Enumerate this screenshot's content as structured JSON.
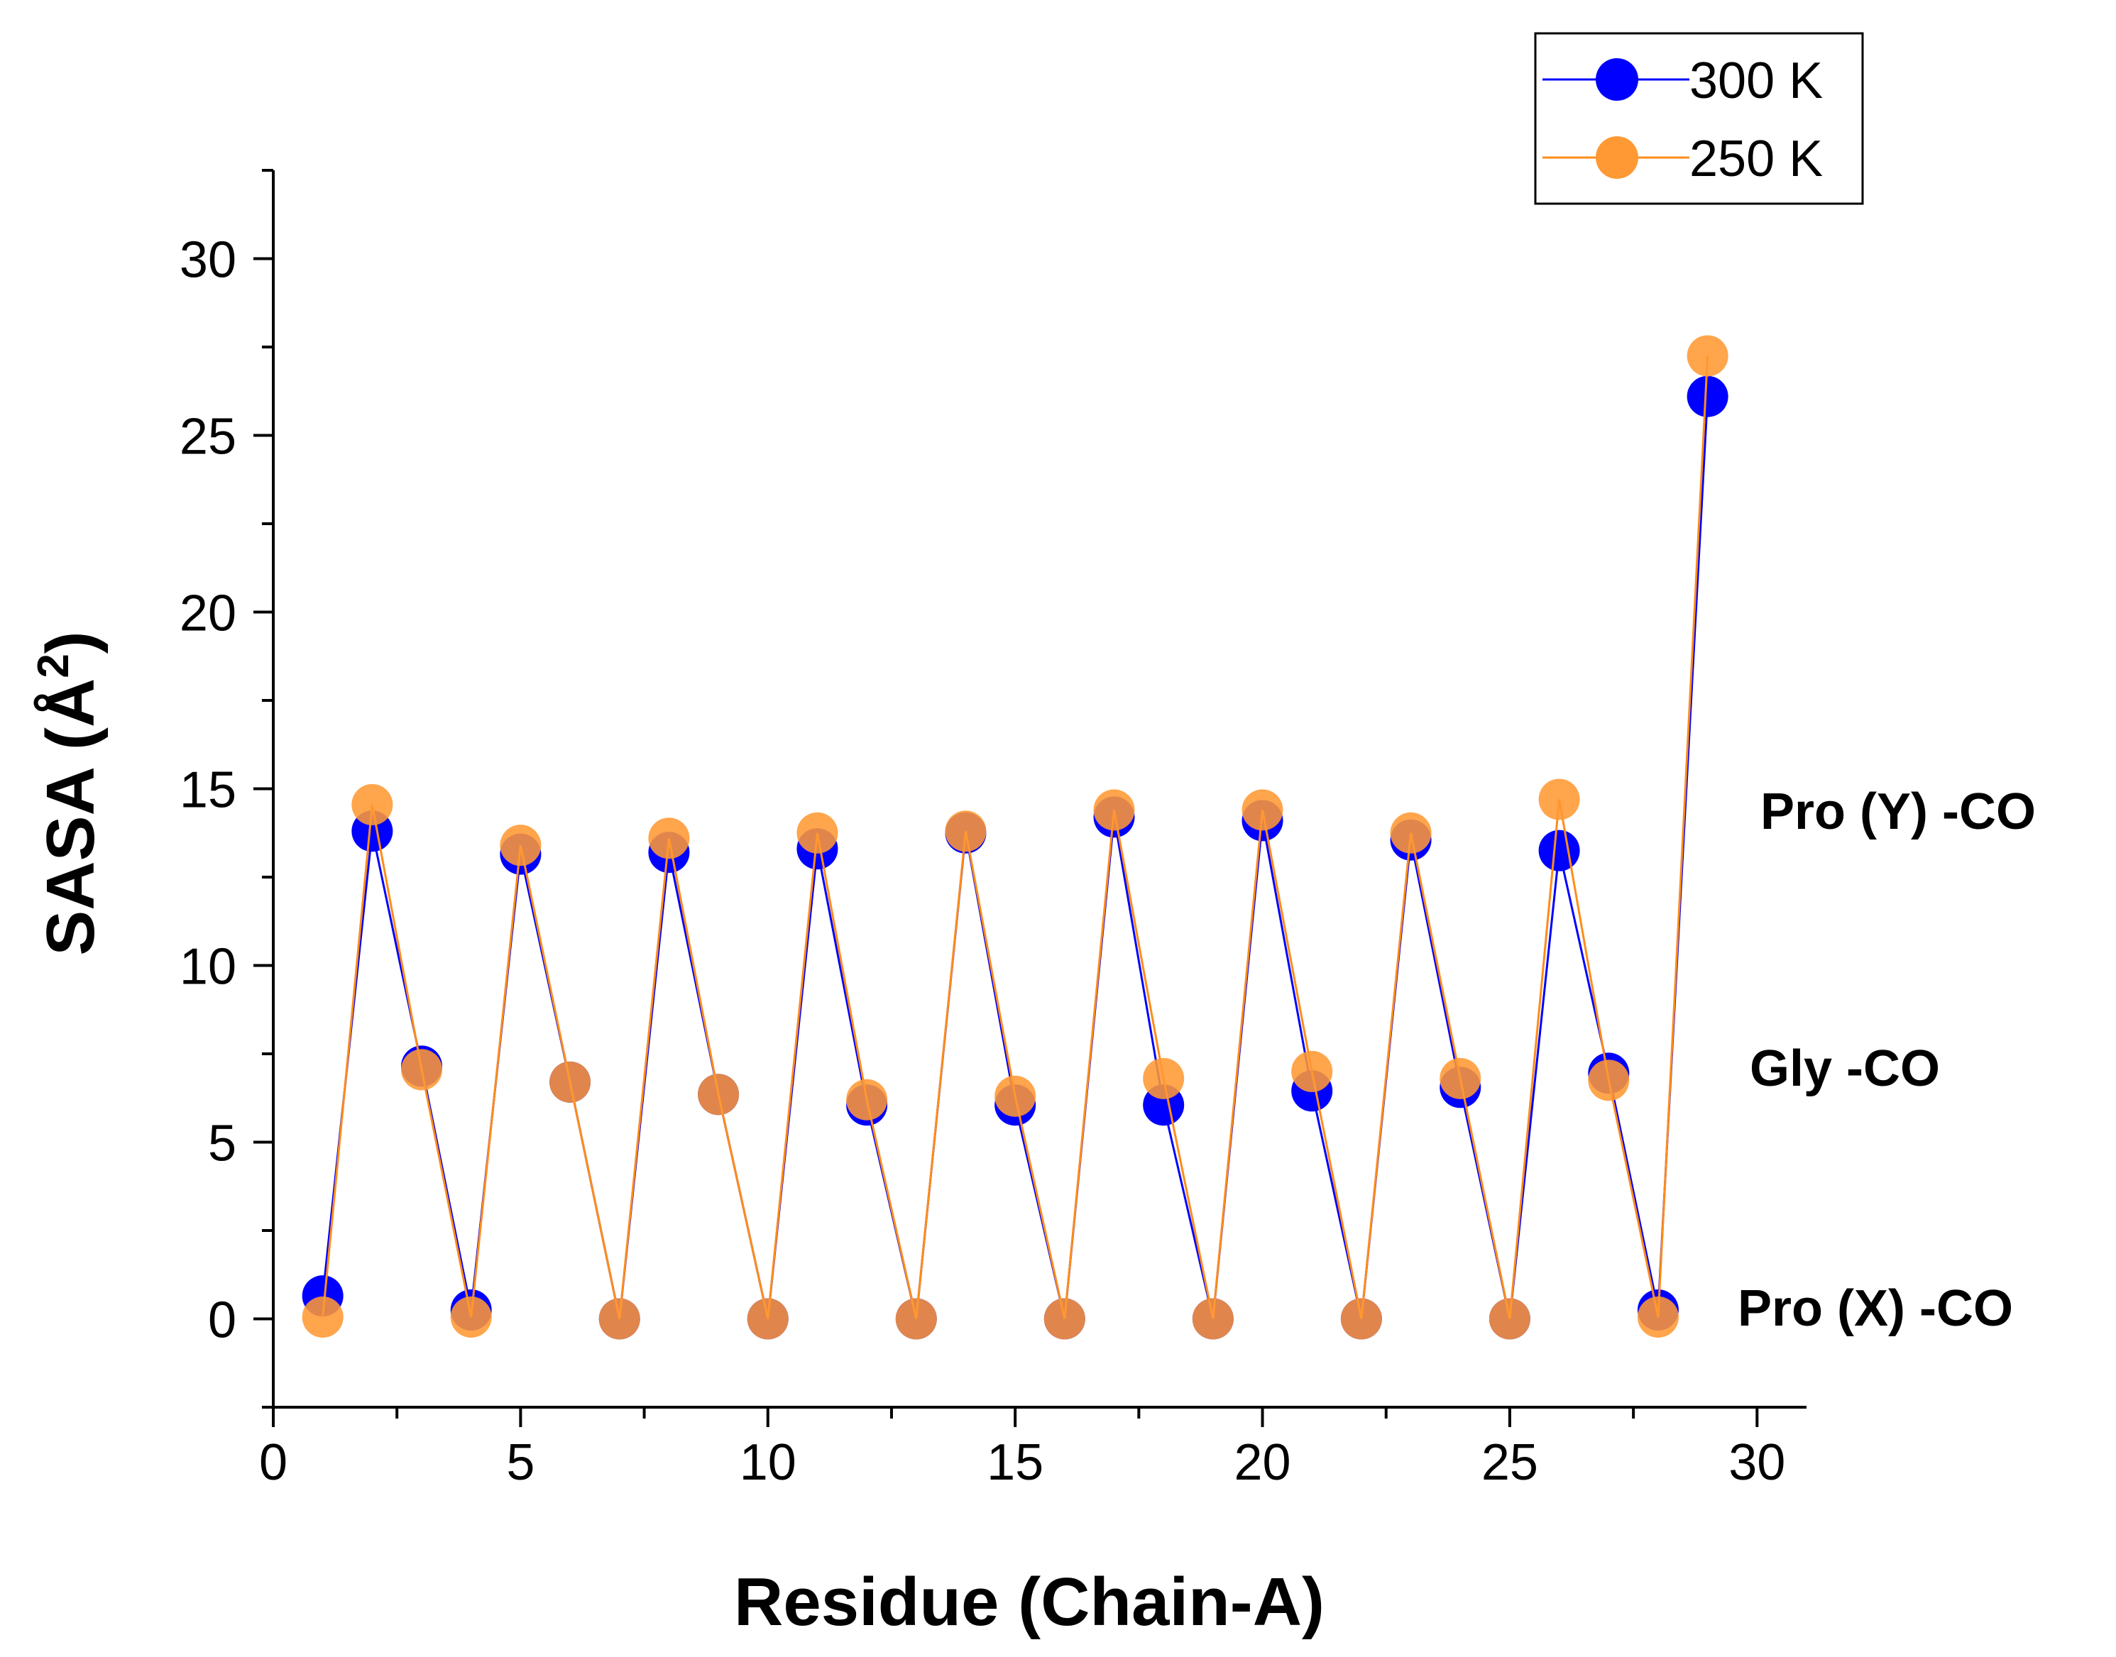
{
  "chart_data": {
    "type": "line",
    "title": "",
    "xlabel": "Residue (Chain-A)",
    "ylabel_main": "SASA (Å",
    "ylabel_sup": "2",
    "ylabel_close": ")",
    "xlim": [
      0,
      31
    ],
    "ylim": [
      -2.5,
      32.5
    ],
    "xticks": [
      0,
      5,
      10,
      15,
      20,
      25,
      30
    ],
    "yticks": [
      0,
      5,
      10,
      15,
      20,
      25,
      30
    ],
    "x": [
      1,
      2,
      3,
      4,
      5,
      6,
      7,
      8,
      9,
      10,
      11,
      12,
      13,
      14,
      15,
      16,
      17,
      18,
      19,
      20,
      21,
      22,
      23,
      24,
      25,
      26,
      27,
      28,
      29
    ],
    "series": [
      {
        "name": "300 K",
        "color": "#0000ff",
        "values": [
          0.65,
          13.8,
          7.15,
          0.25,
          13.15,
          6.7,
          0.0,
          13.2,
          6.35,
          0.0,
          13.3,
          6.05,
          0.0,
          13.75,
          6.05,
          0.0,
          14.2,
          6.05,
          0.0,
          14.1,
          6.45,
          0.0,
          13.55,
          6.55,
          0.0,
          13.25,
          6.95,
          0.25,
          26.1
        ]
      },
      {
        "name": "250 K",
        "color": "#ff8c1a",
        "values": [
          0.05,
          14.55,
          7.05,
          0.05,
          13.4,
          6.7,
          0.0,
          13.6,
          6.35,
          0.0,
          13.75,
          6.2,
          0.0,
          13.8,
          6.3,
          0.0,
          14.4,
          6.8,
          0.0,
          14.4,
          7.0,
          0.0,
          13.75,
          6.8,
          0.0,
          14.7,
          6.75,
          0.05,
          27.25
        ]
      }
    ],
    "annotations": [
      {
        "text": "Pro (Y) -CO"
      },
      {
        "text": "Gly -CO"
      },
      {
        "text": "Pro (X) -CO"
      }
    ],
    "legend_position": "top-right"
  }
}
